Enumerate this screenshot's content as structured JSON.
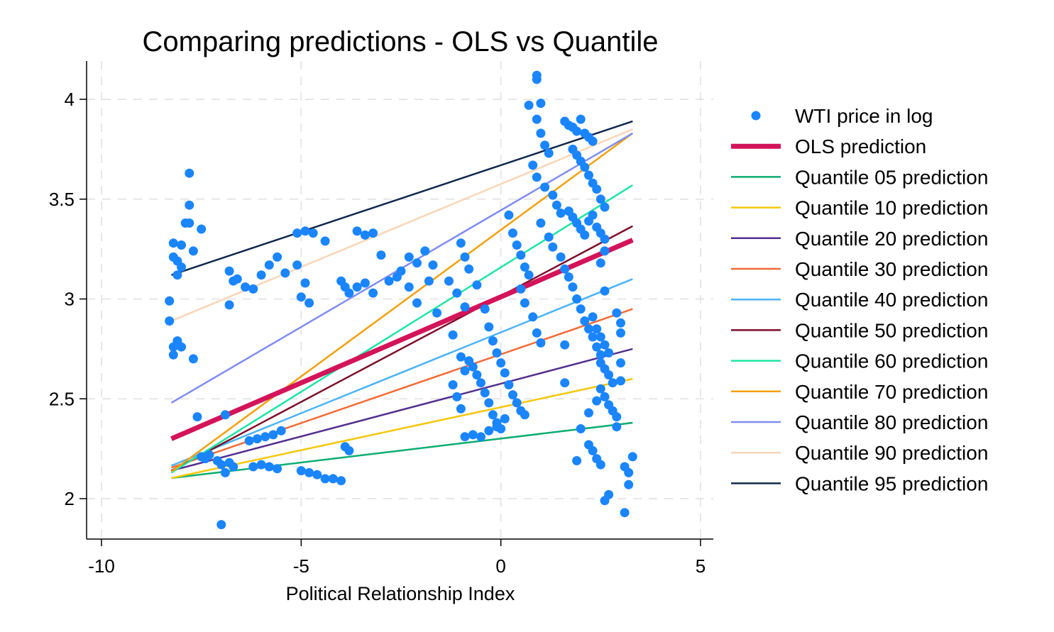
{
  "chart_data": {
    "type": "scatter",
    "title": "Comparing predictions - OLS vs Quantile",
    "xlabel": "Political Relationship Index",
    "ylabel": "",
    "xlim": [
      -10.4,
      5.3
    ],
    "ylim": [
      1.8,
      4.2
    ],
    "xticks": [
      -10,
      -5,
      0,
      5
    ],
    "xtick_labels": [
      "-10",
      "-5",
      "0",
      "5"
    ],
    "yticks": [
      2,
      2.5,
      3,
      3.5,
      4
    ],
    "ytick_labels": [
      "2",
      "2.5",
      "3",
      "3.5",
      "4"
    ],
    "grid": true,
    "legend_position": "right",
    "scatter": {
      "name": "WTI price in log",
      "color": "#1a85ff",
      "points": [
        [
          -8.3,
          2.99
        ],
        [
          -8.3,
          2.89
        ],
        [
          -8.2,
          3.28
        ],
        [
          -8.2,
          3.21
        ],
        [
          -8.1,
          3.19
        ],
        [
          -8.1,
          3.12
        ],
        [
          -8.0,
          3.27
        ],
        [
          -8.0,
          3.16
        ],
        [
          -7.9,
          3.38
        ],
        [
          -7.8,
          3.63
        ],
        [
          -7.8,
          3.47
        ],
        [
          -7.8,
          3.38
        ],
        [
          -7.7,
          3.24
        ],
        [
          -7.5,
          3.35
        ],
        [
          -8.2,
          2.76
        ],
        [
          -8.2,
          2.72
        ],
        [
          -8.1,
          2.79
        ],
        [
          -8.0,
          2.76
        ],
        [
          -7.7,
          2.7
        ],
        [
          -7.6,
          2.41
        ],
        [
          -7.5,
          2.21
        ],
        [
          -7.4,
          2.2
        ],
        [
          -7.3,
          2.22
        ],
        [
          -7.1,
          2.19
        ],
        [
          -7.0,
          2.17
        ],
        [
          -6.9,
          2.13
        ],
        [
          -6.8,
          2.18
        ],
        [
          -6.7,
          2.16
        ],
        [
          -6.9,
          2.42
        ],
        [
          -7.0,
          1.87
        ],
        [
          -6.8,
          3.14
        ],
        [
          -6.7,
          3.09
        ],
        [
          -6.6,
          3.1
        ],
        [
          -6.4,
          3.06
        ],
        [
          -6.2,
          3.05
        ],
        [
          -6.0,
          3.12
        ],
        [
          -5.8,
          3.17
        ],
        [
          -5.6,
          3.21
        ],
        [
          -5.4,
          3.13
        ],
        [
          -6.8,
          2.97
        ],
        [
          -6.3,
          2.29
        ],
        [
          -6.1,
          2.3
        ],
        [
          -5.9,
          2.31
        ],
        [
          -5.7,
          2.32
        ],
        [
          -5.5,
          2.34
        ],
        [
          -6.2,
          2.16
        ],
        [
          -6.0,
          2.17
        ],
        [
          -5.8,
          2.16
        ],
        [
          -5.6,
          2.15
        ],
        [
          -5.1,
          3.33
        ],
        [
          -4.9,
          3.34
        ],
        [
          -4.7,
          3.33
        ],
        [
          -4.4,
          3.29
        ],
        [
          -5.1,
          3.17
        ],
        [
          -4.9,
          3.08
        ],
        [
          -4.8,
          2.98
        ],
        [
          -5.0,
          3.01
        ],
        [
          -5.0,
          2.14
        ],
        [
          -4.8,
          2.13
        ],
        [
          -4.6,
          2.12
        ],
        [
          -4.4,
          2.1
        ],
        [
          -4.2,
          2.1
        ],
        [
          -4.0,
          2.09
        ],
        [
          -4.0,
          3.09
        ],
        [
          -3.9,
          3.06
        ],
        [
          -3.8,
          3.03
        ],
        [
          -3.6,
          3.06
        ],
        [
          -3.4,
          3.08
        ],
        [
          -3.2,
          3.03
        ],
        [
          -3.9,
          2.26
        ],
        [
          -3.8,
          2.24
        ],
        [
          -3.6,
          3.34
        ],
        [
          -3.4,
          3.32
        ],
        [
          -3.2,
          3.33
        ],
        [
          -3.0,
          3.22
        ],
        [
          -2.8,
          3.09
        ],
        [
          -2.6,
          3.11
        ],
        [
          -2.5,
          3.14
        ],
        [
          -2.3,
          3.21
        ],
        [
          -2.1,
          3.18
        ],
        [
          -1.9,
          3.24
        ],
        [
          -1.7,
          3.17
        ],
        [
          -2.3,
          3.06
        ],
        [
          -2.1,
          2.98
        ],
        [
          -1.8,
          3.09
        ],
        [
          -1.6,
          2.93
        ],
        [
          -1.3,
          3.09
        ],
        [
          -1.1,
          3.03
        ],
        [
          -0.9,
          2.96
        ],
        [
          -1.2,
          2.82
        ],
        [
          -1.0,
          2.71
        ],
        [
          -0.9,
          2.64
        ],
        [
          -1.2,
          2.57
        ],
        [
          -1.1,
          2.51
        ],
        [
          -1.0,
          2.45
        ],
        [
          -1.0,
          3.28
        ],
        [
          -0.9,
          3.21
        ],
        [
          -0.8,
          3.15
        ],
        [
          -0.6,
          3.07
        ],
        [
          -0.4,
          2.95
        ],
        [
          -0.3,
          2.86
        ],
        [
          -0.2,
          2.79
        ],
        [
          -0.1,
          2.73
        ],
        [
          0.0,
          2.68
        ],
        [
          0.1,
          2.63
        ],
        [
          0.2,
          2.57
        ],
        [
          0.3,
          2.52
        ],
        [
          0.4,
          2.48
        ],
        [
          0.5,
          2.44
        ],
        [
          0.6,
          2.42
        ],
        [
          -0.8,
          2.69
        ],
        [
          -0.7,
          2.66
        ],
        [
          -0.6,
          2.62
        ],
        [
          -0.5,
          2.58
        ],
        [
          -0.4,
          2.53
        ],
        [
          -0.3,
          2.48
        ],
        [
          -0.2,
          2.42
        ],
        [
          -0.1,
          2.38
        ],
        [
          0.0,
          2.35
        ],
        [
          -0.9,
          2.31
        ],
        [
          -0.7,
          2.32
        ],
        [
          -0.5,
          2.31
        ],
        [
          -0.3,
          2.34
        ],
        [
          -0.1,
          2.36
        ],
        [
          0.1,
          2.4
        ],
        [
          0.2,
          3.42
        ],
        [
          0.3,
          3.33
        ],
        [
          0.4,
          3.27
        ],
        [
          0.5,
          3.22
        ],
        [
          0.6,
          3.16
        ],
        [
          0.7,
          3.12
        ],
        [
          0.5,
          3.05
        ],
        [
          0.6,
          2.98
        ],
        [
          0.8,
          2.91
        ],
        [
          0.9,
          2.83
        ],
        [
          1.0,
          2.78
        ],
        [
          0.7,
          3.97
        ],
        [
          0.9,
          4.12
        ],
        [
          0.9,
          4.1
        ],
        [
          1.0,
          3.98
        ],
        [
          0.9,
          3.9
        ],
        [
          1.0,
          3.83
        ],
        [
          1.1,
          3.77
        ],
        [
          1.2,
          3.73
        ],
        [
          0.8,
          3.67
        ],
        [
          0.9,
          3.61
        ],
        [
          1.1,
          3.56
        ],
        [
          1.3,
          3.52
        ],
        [
          1.4,
          3.47
        ],
        [
          1.5,
          3.43
        ],
        [
          1.0,
          3.38
        ],
        [
          1.2,
          3.31
        ],
        [
          1.3,
          3.26
        ],
        [
          1.5,
          3.21
        ],
        [
          1.6,
          3.15
        ],
        [
          1.7,
          3.11
        ],
        [
          1.8,
          3.06
        ],
        [
          1.9,
          3.0
        ],
        [
          2.0,
          2.95
        ],
        [
          2.1,
          2.89
        ],
        [
          2.2,
          2.85
        ],
        [
          2.3,
          2.81
        ],
        [
          2.4,
          2.76
        ],
        [
          2.5,
          2.72
        ],
        [
          1.6,
          3.89
        ],
        [
          1.7,
          3.87
        ],
        [
          1.8,
          3.86
        ],
        [
          1.9,
          3.84
        ],
        [
          2.0,
          3.9
        ],
        [
          2.1,
          3.83
        ],
        [
          2.2,
          3.81
        ],
        [
          2.3,
          3.79
        ],
        [
          1.8,
          3.75
        ],
        [
          1.9,
          3.72
        ],
        [
          2.0,
          3.69
        ],
        [
          2.1,
          3.66
        ],
        [
          2.2,
          3.62
        ],
        [
          2.3,
          3.58
        ],
        [
          2.4,
          3.55
        ],
        [
          2.5,
          3.5
        ],
        [
          2.6,
          3.46
        ],
        [
          1.7,
          3.44
        ],
        [
          1.8,
          3.41
        ],
        [
          1.9,
          3.38
        ],
        [
          2.0,
          3.35
        ],
        [
          2.1,
          3.32
        ],
        [
          2.2,
          3.39
        ],
        [
          2.3,
          3.42
        ],
        [
          2.4,
          3.36
        ],
        [
          2.5,
          3.33
        ],
        [
          2.6,
          3.3
        ],
        [
          2.6,
          3.24
        ],
        [
          2.5,
          3.18
        ],
        [
          2.6,
          3.04
        ],
        [
          2.3,
          2.91
        ],
        [
          2.4,
          2.85
        ],
        [
          2.5,
          2.81
        ],
        [
          2.6,
          2.77
        ],
        [
          2.7,
          2.73
        ],
        [
          2.5,
          2.68
        ],
        [
          2.6,
          2.65
        ],
        [
          2.7,
          2.62
        ],
        [
          2.8,
          2.58
        ],
        [
          2.5,
          2.55
        ],
        [
          2.6,
          2.51
        ],
        [
          2.7,
          2.47
        ],
        [
          2.8,
          2.44
        ],
        [
          2.9,
          2.41
        ],
        [
          2.2,
          2.27
        ],
        [
          2.3,
          2.24
        ],
        [
          2.4,
          2.2
        ],
        [
          2.5,
          2.17
        ],
        [
          2.0,
          2.35
        ],
        [
          1.9,
          2.19
        ],
        [
          2.2,
          2.43
        ],
        [
          2.4,
          2.49
        ],
        [
          2.9,
          2.93
        ],
        [
          3.0,
          2.88
        ],
        [
          3.0,
          2.83
        ],
        [
          3.0,
          2.68
        ],
        [
          3.0,
          2.59
        ],
        [
          2.9,
          2.36
        ],
        [
          3.1,
          2.16
        ],
        [
          3.2,
          2.13
        ],
        [
          3.3,
          2.21
        ],
        [
          3.2,
          2.07
        ],
        [
          3.1,
          1.93
        ],
        [
          2.7,
          2.02
        ],
        [
          2.6,
          1.99
        ],
        [
          1.6,
          2.58
        ],
        [
          1.6,
          2.77
        ]
      ]
    },
    "series": [
      {
        "name": "OLS prediction",
        "color": "#d3145a",
        "width": 7,
        "x": [
          -8.25,
          3.3
        ],
        "y": [
          2.3,
          3.295
        ]
      },
      {
        "name": "Quantile 05 prediction",
        "color": "#0cad72",
        "width": 2.5,
        "x": [
          -8.25,
          3.3
        ],
        "y": [
          2.103,
          2.38
        ]
      },
      {
        "name": "Quantile 10 prediction",
        "color": "#f3c80b",
        "width": 2.5,
        "x": [
          -8.25,
          3.3
        ],
        "y": [
          2.103,
          2.6
        ]
      },
      {
        "name": "Quantile 20 prediction",
        "color": "#532f8f",
        "width": 2.5,
        "x": [
          -8.25,
          3.3
        ],
        "y": [
          2.14,
          2.75
        ]
      },
      {
        "name": "Quantile 30 prediction",
        "color": "#f26b36",
        "width": 2.5,
        "x": [
          -8.25,
          3.3
        ],
        "y": [
          2.155,
          2.95
        ]
      },
      {
        "name": "Quantile 40 prediction",
        "color": "#4ab3f4",
        "width": 2.5,
        "x": [
          -8.25,
          3.3
        ],
        "y": [
          2.165,
          3.1
        ]
      },
      {
        "name": "Quantile 50 prediction",
        "color": "#7c0f2a",
        "width": 2.5,
        "x": [
          -8.25,
          3.3
        ],
        "y": [
          2.14,
          3.365
        ]
      },
      {
        "name": "Quantile 60 prediction",
        "color": "#1ee5a3",
        "width": 2.5,
        "x": [
          -8.25,
          3.3
        ],
        "y": [
          2.13,
          3.57
        ]
      },
      {
        "name": "Quantile 70 prediction",
        "color": "#f1a10e",
        "width": 2.5,
        "x": [
          -8.25,
          3.3
        ],
        "y": [
          2.135,
          3.83
        ]
      },
      {
        "name": "Quantile 80 prediction",
        "color": "#7f8cf0",
        "width": 2.5,
        "x": [
          -8.25,
          3.3
        ],
        "y": [
          2.48,
          3.83
        ]
      },
      {
        "name": "Quantile 90 prediction",
        "color": "#f9d6b8",
        "width": 2.5,
        "x": [
          -8.25,
          3.3
        ],
        "y": [
          2.89,
          3.85
        ]
      },
      {
        "name": "Quantile 95 prediction",
        "color": "#11294b",
        "width": 2.5,
        "x": [
          -8.25,
          3.3
        ],
        "y": [
          3.12,
          3.89
        ]
      }
    ]
  }
}
